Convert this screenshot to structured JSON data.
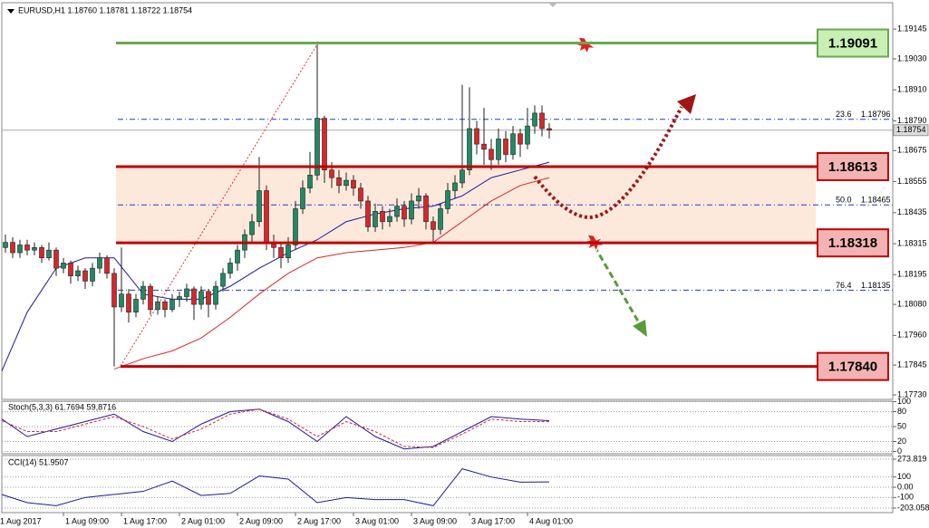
{
  "chart_data": [
    {
      "type": "candlestick",
      "title": "EURUSD,H1 1.18760 1.18781 1.18722 1.18754",
      "open": [
        1.1829,
        1.183,
        1.1832,
        1.1828,
        1.1831,
        1.1829,
        1.183,
        1.1826,
        1.1829,
        1.1822,
        1.1824,
        1.1819,
        1.1821,
        1.1817,
        1.1822,
        1.1826,
        1.182,
        1.1807,
        1.1812,
        1.1805,
        1.181,
        1.1815,
        1.1806,
        1.1809,
        1.1806,
        1.181,
        1.1811,
        1.1814,
        1.1808,
        1.1813,
        1.1808,
        1.1815,
        1.182,
        1.1824,
        1.1829,
        1.1835,
        1.184,
        1.1852,
        1.1832,
        1.183,
        1.1826,
        1.1831,
        1.1845,
        1.1853,
        1.1858,
        1.188,
        1.186,
        1.1857,
        1.1854,
        1.1856,
        1.1853,
        1.1848,
        1.1838,
        1.1844,
        1.184,
        1.1842,
        1.1846,
        1.1841,
        1.1848,
        1.185,
        1.184,
        1.1837,
        1.1845,
        1.1852,
        1.1855,
        1.186,
        1.1876,
        1.187,
        1.1868,
        1.1864,
        1.1872,
        1.1866,
        1.1874,
        1.187,
        1.1877,
        1.1882,
        1.1876
      ],
      "high": [
        1.1833,
        1.1835,
        1.1834,
        1.1833,
        1.1833,
        1.1832,
        1.1831,
        1.1832,
        1.183,
        1.1826,
        1.1825,
        1.1823,
        1.1822,
        1.1824,
        1.1828,
        1.1827,
        1.1822,
        1.183,
        1.1814,
        1.1812,
        1.1817,
        1.1816,
        1.1811,
        1.181,
        1.1812,
        1.1813,
        1.1816,
        1.1815,
        1.1815,
        1.1814,
        1.1817,
        1.1822,
        1.1826,
        1.1831,
        1.1837,
        1.1843,
        1.1865,
        1.1854,
        1.1835,
        1.1832,
        1.1834,
        1.1848,
        1.1856,
        1.1867,
        1.1909,
        1.1881,
        1.1863,
        1.186,
        1.1859,
        1.1858,
        1.1855,
        1.185,
        1.1847,
        1.1846,
        1.1845,
        1.1849,
        1.1848,
        1.1851,
        1.1853,
        1.1851,
        1.1842,
        1.1847,
        1.1855,
        1.1858,
        1.1893,
        1.1892,
        1.1879,
        1.1884,
        1.1872,
        1.1876,
        1.1875,
        1.1877,
        1.1876,
        1.1884,
        1.1885,
        1.1885,
        1.18781
      ],
      "low": [
        1.1826,
        1.1828,
        1.1826,
        1.1826,
        1.1827,
        1.1827,
        1.1824,
        1.1825,
        1.1819,
        1.182,
        1.1816,
        1.1817,
        1.1814,
        1.1815,
        1.182,
        1.1818,
        1.1784,
        1.1805,
        1.1801,
        1.1803,
        1.1808,
        1.1804,
        1.1804,
        1.1803,
        1.1805,
        1.1807,
        1.1809,
        1.1802,
        1.1806,
        1.1803,
        1.1806,
        1.1813,
        1.1818,
        1.1821,
        1.1826,
        1.1832,
        1.1838,
        1.1829,
        1.1826,
        1.1822,
        1.1824,
        1.1829,
        1.1843,
        1.1851,
        1.1856,
        1.1855,
        1.1853,
        1.1851,
        1.1852,
        1.185,
        1.1845,
        1.1836,
        1.1836,
        1.1837,
        1.1838,
        1.184,
        1.1838,
        1.1839,
        1.1845,
        1.1837,
        1.1832,
        1.1835,
        1.1843,
        1.1849,
        1.1853,
        1.1858,
        1.1866,
        1.1862,
        1.186,
        1.1862,
        1.1863,
        1.1864,
        1.1865,
        1.1868,
        1.1874,
        1.1873,
        1.18722
      ],
      "close": [
        1.183,
        1.1832,
        1.1828,
        1.1831,
        1.1829,
        1.183,
        1.1826,
        1.1829,
        1.1822,
        1.1824,
        1.1819,
        1.1821,
        1.1817,
        1.1822,
        1.1826,
        1.182,
        1.1807,
        1.1812,
        1.1805,
        1.181,
        1.1815,
        1.1806,
        1.1809,
        1.1806,
        1.181,
        1.1811,
        1.1814,
        1.1808,
        1.1813,
        1.1808,
        1.1815,
        1.182,
        1.1824,
        1.1829,
        1.1835,
        1.184,
        1.1852,
        1.1832,
        1.183,
        1.1826,
        1.1831,
        1.1845,
        1.1853,
        1.1858,
        1.188,
        1.186,
        1.1857,
        1.1854,
        1.1856,
        1.1853,
        1.1848,
        1.1838,
        1.1844,
        1.184,
        1.1842,
        1.1846,
        1.1841,
        1.1848,
        1.185,
        1.184,
        1.1837,
        1.1845,
        1.1852,
        1.1855,
        1.186,
        1.1876,
        1.187,
        1.1868,
        1.1864,
        1.1872,
        1.1866,
        1.1874,
        1.187,
        1.1877,
        1.1882,
        1.1876,
        1.18754
      ],
      "up_color": "#1f8a63",
      "down_color": "#d8262b",
      "xlim": [
        0.25,
        123.375
      ],
      "xticks": [
        {
          "value": 0,
          "label": "1 Aug 2017"
        },
        {
          "value": 9,
          "label": "1 Aug 09:00"
        },
        {
          "value": 17,
          "label": "1 Aug 17:00"
        },
        {
          "value": 25,
          "label": "2 Aug 01:00"
        },
        {
          "value": 33,
          "label": "2 Aug 09:00"
        },
        {
          "value": 41,
          "label": "2 Aug 17:00"
        },
        {
          "value": 49,
          "label": "3 Aug 01:00"
        },
        {
          "value": 57,
          "label": "3 Aug 09:00"
        },
        {
          "value": 65,
          "label": "3 Aug 17:00"
        },
        {
          "value": 73,
          "label": "4 Aug 01:00"
        }
      ],
      "ylim": [
        1.17716,
        1.1924
      ],
      "yticks": [
        1.19145,
        {
          "value": 1.1903,
          "label": "1.19030"
        },
        {
          "value": 1.1891,
          "label": "1.18910"
        },
        {
          "value": 1.1879,
          "label": "1.18790"
        },
        1.18675,
        1.18555,
        1.18435,
        1.18315,
        1.18195,
        {
          "value": 1.1808,
          "label": "1.18080"
        },
        {
          "value": 1.1796,
          "label": "1.17960"
        },
        1.17845,
        {
          "value": 1.1773,
          "label": "1.17730"
        }
      ],
      "current_price": 1.18754,
      "levels": [
        {
          "value": 1.19091,
          "color": "#6aa84f",
          "fill": "#c9efb4"
        },
        {
          "value": 1.18613,
          "color": "#c00000",
          "fill": "#f4b3b3"
        },
        {
          "value": 1.18318,
          "color": "#c00000",
          "fill": "#f4b3b3"
        },
        {
          "value": 1.1784,
          "label": "1.17840",
          "color": "#c00000",
          "fill": "#f4b3b3"
        }
      ],
      "zone_color": "#fde9dc",
      "fib_levels": [
        {
          "ratio": 23.6,
          "price": 1.18796
        },
        {
          "ratio": {
            "value": 50,
            "label": "50.0"
          },
          "price": 1.18465
        },
        {
          "ratio": 76.4,
          "price": 1.18135
        }
      ],
      "fib_color": "#1f3cc8",
      "moving_averages": [
        {
          "color": "#1a1aa0",
          "x": [
            0,
            4,
            8,
            12,
            16,
            20,
            24,
            28,
            32,
            36,
            40,
            44,
            48,
            52,
            56,
            60,
            64,
            68,
            72,
            76
          ],
          "values": [
            1.1779,
            1.1805,
            1.1822,
            1.1826,
            1.1826,
            1.1812,
            1.181,
            1.181,
            1.1815,
            1.1822,
            1.1828,
            1.1833,
            1.184,
            1.1843,
            1.1845,
            1.1846,
            1.185,
            1.1857,
            1.186,
            1.1863
          ]
        },
        {
          "color": "#d8262b",
          "x": [
            0,
            4,
            8,
            12,
            16,
            20,
            24,
            28,
            32,
            36,
            40,
            44,
            48,
            52,
            56,
            60,
            64,
            68,
            72,
            76
          ],
          "values": [
            null,
            null,
            null,
            null,
            1.1783,
            1.1787,
            1.179,
            1.1795,
            1.1803,
            1.1812,
            1.182,
            1.1826,
            1.1828,
            1.1829,
            1.183,
            1.1832,
            1.184,
            1.1848,
            1.1854,
            1.1857
          ]
        }
      ]
    },
    {
      "type": "line",
      "title": "Stoch(5,3,3) 61.7694 59,8716",
      "x": [
        0,
        4,
        8,
        12,
        16,
        20,
        24,
        28,
        32,
        36,
        40,
        44,
        48,
        52,
        56,
        60,
        64,
        68,
        72,
        76
      ],
      "series": [
        {
          "color": "#1a1aa0",
          "values": [
            70,
            30,
            45,
            60,
            75,
            40,
            20,
            55,
            80,
            85,
            60,
            20,
            70,
            30,
            5,
            10,
            40,
            70,
            65,
            61.7694
          ]
        },
        {
          "color": "#d8262b",
          "dashed": true,
          "values": [
            65,
            40,
            40,
            55,
            70,
            50,
            25,
            45,
            75,
            85,
            65,
            30,
            60,
            40,
            10,
            8,
            35,
            65,
            60,
            59.8716
          ]
        }
      ],
      "ylim": [
        0,
        100
      ],
      "yticks": [
        100,
        80,
        50,
        20,
        0
      ],
      "grid": true
    },
    {
      "type": "line",
      "title": "CCI(14) 51.9507",
      "x": [
        0,
        4,
        8,
        12,
        16,
        20,
        24,
        28,
        32,
        36,
        40,
        44,
        48,
        52,
        56,
        60,
        64,
        68,
        72,
        76
      ],
      "series": [
        {
          "color": "#1a1aa0",
          "values": [
            -60,
            -150,
            -180,
            -100,
            -70,
            -40,
            60,
            -80,
            -60,
            110,
            80,
            -150,
            -100,
            -120,
            -120,
            -180,
            180,
            100,
            50,
            51.9507
          ]
        }
      ],
      "ylim": [
        -203.058,
        273.819
      ],
      "yticks": [
        {
          "value": 273.819,
          "label": "273.819"
        },
        100,
        {
          "value": 0,
          "label": "0.00"
        },
        -100,
        {
          "value": -203.058,
          "label": "-203.058"
        }
      ],
      "grid": true
    }
  ]
}
